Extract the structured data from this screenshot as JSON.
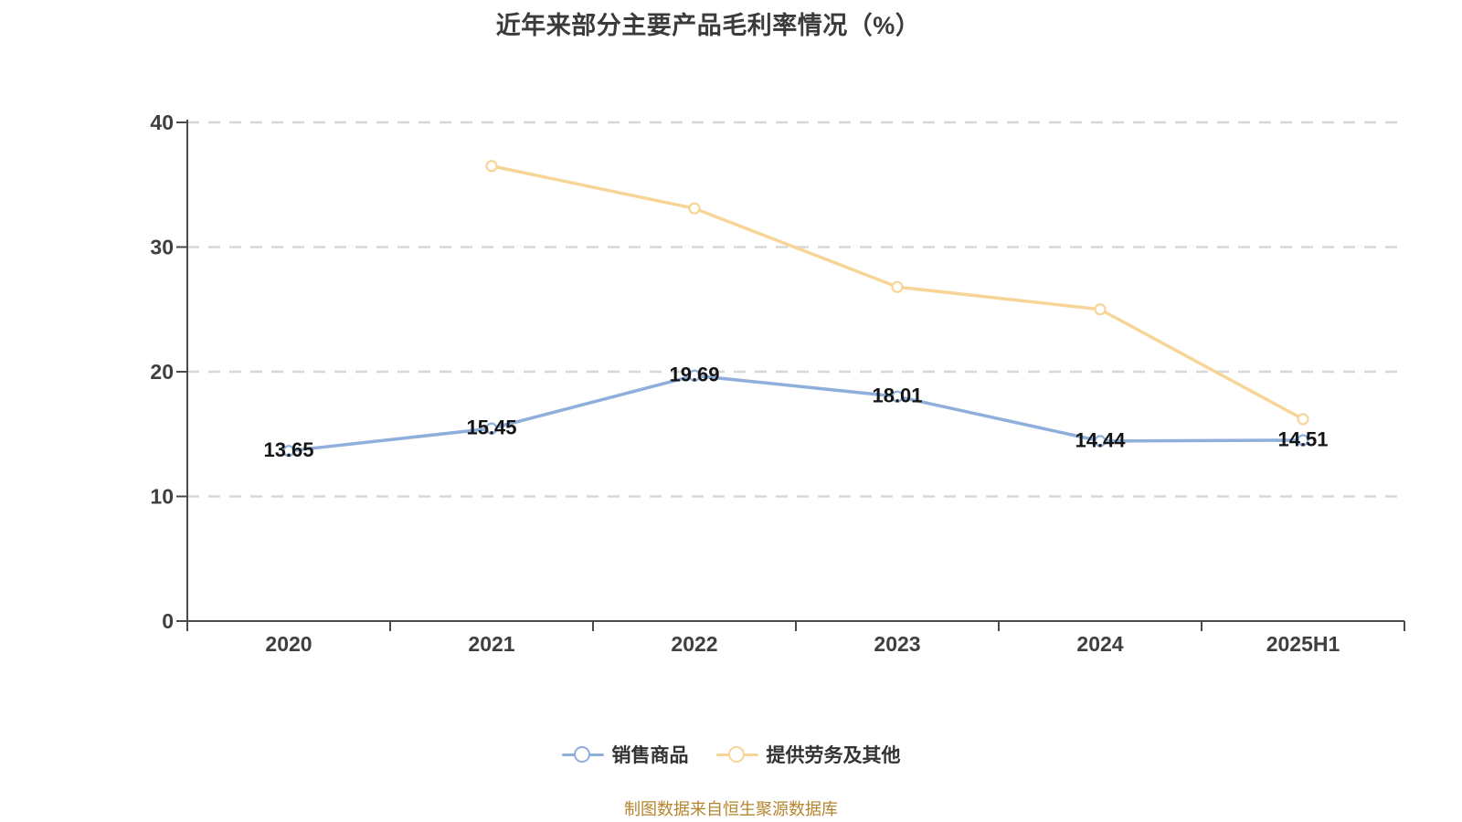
{
  "title": "近年来部分主要产品毛利率情况（%）",
  "footer_note": "制图数据来自恒生聚源数据库",
  "colors": {
    "series_blue": "#8EAFDC",
    "series_yellow": "#F7D597",
    "axis": "#4A4A4A",
    "tick_label": "#3F3F3F",
    "gridline": "#D7D7D7",
    "data_label": "#141414",
    "title_text": "#3B3B3B",
    "footer_text": "#B5852E",
    "legend_text": "#333333",
    "point_fill": "#FFFFFF"
  },
  "chart_data": {
    "type": "line",
    "title": "近年来部分主要产品毛利率情况（%）",
    "categories": [
      "2020",
      "2021",
      "2022",
      "2023",
      "2024",
      "2025H1"
    ],
    "series": [
      {
        "name": "销售商品",
        "color": "#8EAFDC",
        "values": [
          13.65,
          15.45,
          19.69,
          18.01,
          14.44,
          14.51
        ],
        "data_labels": [
          "13.65",
          "15.45",
          "19.69",
          "18.01",
          "14.44",
          "14.51"
        ],
        "show_labels": true
      },
      {
        "name": "提供劳务及其他",
        "color": "#F7D597",
        "values": [
          null,
          36.5,
          33.1,
          26.8,
          25.0,
          16.2
        ],
        "data_labels": [],
        "show_labels": false
      }
    ],
    "xlabel": "",
    "ylabel": "",
    "ylim": [
      0,
      40
    ],
    "yticks": [
      0,
      10,
      20,
      30,
      40
    ],
    "grid": "horizontal-dashed",
    "legend_position": "bottom"
  }
}
